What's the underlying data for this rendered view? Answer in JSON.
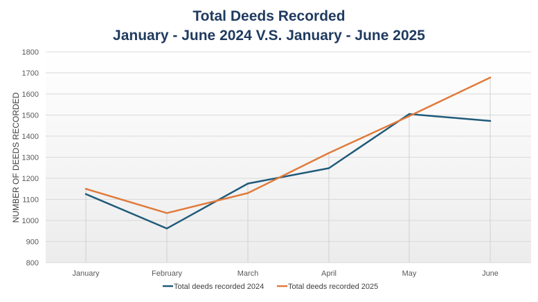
{
  "chart_data": {
    "type": "line",
    "title": "Total Deeds Recorded",
    "subtitle": "January - June 2024 V.S. January - June 2025",
    "xlabel": "",
    "ylabel": "NUMBER OF DEEDS RECORDED",
    "categories": [
      "January",
      "February",
      "March",
      "April",
      "May",
      "June"
    ],
    "ylim": [
      800,
      1800
    ],
    "yticks": [
      800,
      900,
      1000,
      1100,
      1200,
      1300,
      1400,
      1500,
      1600,
      1700,
      1800
    ],
    "grid": true,
    "legend_position": "bottom",
    "series": [
      {
        "name": "Total deeds recorded 2024",
        "color": "#1f5a7a",
        "values": [
          1125,
          962,
          1175,
          1248,
          1505,
          1472
        ]
      },
      {
        "name": "Total deeds recorded 2025",
        "color": "#e07a3a",
        "values": [
          1150,
          1035,
          1130,
          1320,
          1495,
          1678
        ]
      }
    ]
  }
}
